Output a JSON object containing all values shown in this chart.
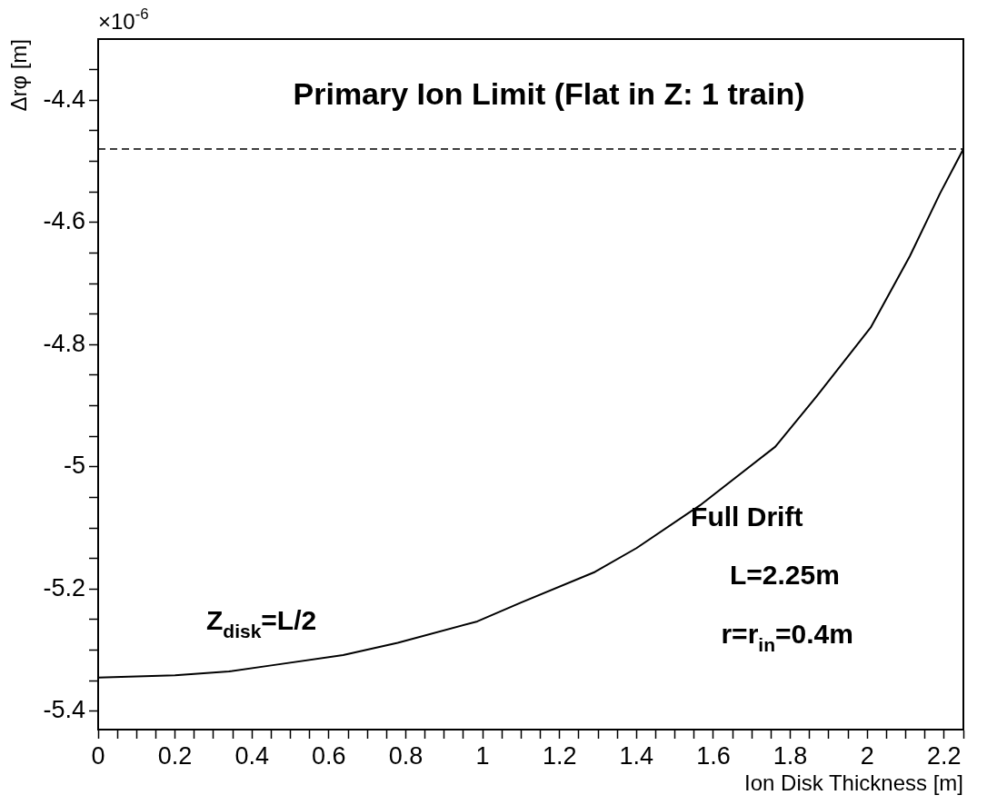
{
  "chart_data": {
    "type": "line",
    "title": "Primary Ion Limit (Flat in Z: 1 train)",
    "xlabel": "Ion Disk Thickness [m]",
    "ylabel": "Δrφ [m]",
    "xlim": [
      0,
      2.25
    ],
    "ylim": [
      -5.43,
      -4.3
    ],
    "xticks": [
      0,
      {
        "value": 0.05,
        "label": null
      },
      {
        "value": 0.1,
        "label": null
      },
      {
        "value": 0.15,
        "label": null
      },
      0.2,
      {
        "value": 0.25,
        "label": null
      },
      {
        "value": 0.3,
        "label": null
      },
      {
        "value": 0.35,
        "label": null
      },
      0.4,
      {
        "value": 0.45,
        "label": null
      },
      {
        "value": 0.5,
        "label": null
      },
      {
        "value": 0.55,
        "label": null
      },
      0.6,
      {
        "value": 0.65,
        "label": null
      },
      {
        "value": 0.7,
        "label": null
      },
      {
        "value": 0.75,
        "label": null
      },
      0.8,
      {
        "value": 0.85,
        "label": null
      },
      {
        "value": 0.9,
        "label": null
      },
      {
        "value": 0.95,
        "label": null
      },
      1,
      {
        "value": 1.05,
        "label": null
      },
      {
        "value": 1.1,
        "label": null
      },
      {
        "value": 1.15,
        "label": null
      },
      1.2,
      {
        "value": 1.25,
        "label": null
      },
      {
        "value": 1.3,
        "label": null
      },
      {
        "value": 1.35,
        "label": null
      },
      1.4,
      {
        "value": 1.45,
        "label": null
      },
      {
        "value": 1.5,
        "label": null
      },
      {
        "value": 1.55,
        "label": null
      },
      1.6,
      {
        "value": 1.65,
        "label": null
      },
      {
        "value": 1.7,
        "label": null
      },
      {
        "value": 1.75,
        "label": null
      },
      1.8,
      {
        "value": 1.85,
        "label": null
      },
      {
        "value": 1.9,
        "label": null
      },
      {
        "value": 1.95,
        "label": null
      },
      2,
      {
        "value": 2.05,
        "label": null
      },
      {
        "value": 2.1,
        "label": null
      },
      {
        "value": 2.15,
        "label": null
      },
      2.2,
      {
        "value": 2.25,
        "label": null
      }
    ],
    "yticks": [
      -5.4,
      {
        "value": -5.35,
        "label": null
      },
      {
        "value": -5.3,
        "label": null
      },
      {
        "value": -5.25,
        "label": null
      },
      -5.2,
      {
        "value": -5.15,
        "label": null
      },
      {
        "value": -5.1,
        "label": null
      },
      {
        "value": -5.05,
        "label": null
      },
      -5,
      {
        "value": -4.95,
        "label": null
      },
      {
        "value": -4.9,
        "label": null
      },
      {
        "value": -4.85,
        "label": null
      },
      -4.8,
      {
        "value": -4.75,
        "label": null
      },
      {
        "value": -4.7,
        "label": null
      },
      {
        "value": -4.65,
        "label": null
      },
      -4.6,
      {
        "value": -4.55,
        "label": null
      },
      {
        "value": -4.5,
        "label": null
      },
      {
        "value": -4.45,
        "label": null
      },
      -4.4,
      {
        "value": -4.35,
        "label": null
      }
    ],
    "series": [
      {
        "color": "#000000",
        "x": [
          0,
          0.2,
          0.34,
          0.45,
          0.637,
          0.779,
          0.986,
          1.1,
          1.292,
          1.4,
          1.565,
          1.761,
          1.869,
          2.009,
          2.111,
          2.189,
          2.25
        ],
        "values": [
          -5.345,
          -5.341,
          -5.335,
          -5.325,
          -5.308,
          -5.288,
          -5.253,
          -5.222,
          -5.172,
          -5.133,
          -5.063,
          -4.967,
          -4.884,
          -4.772,
          -4.655,
          -4.553,
          -4.48
        ]
      }
    ],
    "ref_lines": [
      {
        "axis": "y",
        "value": -4.48,
        "color": "#000000",
        "line_style": "dashed"
      }
    ],
    "annotations": [
      "×10$^{-6}$",
      "Z$_{disk}$=L/2",
      "Full Drift",
      "L=2.25m",
      "r=r$_{in}$=0.4m"
    ],
    "grid": false,
    "legend": false,
    "marker": "none",
    "line_style": "solid"
  }
}
